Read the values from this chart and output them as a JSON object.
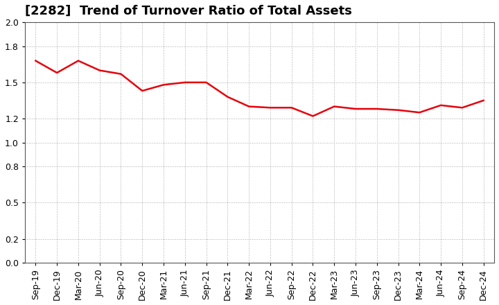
{
  "title": "[2282]  Trend of Turnover Ratio of Total Assets",
  "x_labels": [
    "Sep-19",
    "Dec-19",
    "Mar-20",
    "Jun-20",
    "Sep-20",
    "Dec-20",
    "Mar-21",
    "Jun-21",
    "Sep-21",
    "Dec-21",
    "Mar-22",
    "Jun-22",
    "Sep-22",
    "Dec-22",
    "Mar-23",
    "Jun-23",
    "Sep-23",
    "Dec-23",
    "Mar-24",
    "Jun-24",
    "Sep-24",
    "Dec-24"
  ],
  "y_values": [
    1.68,
    1.58,
    1.68,
    1.6,
    1.57,
    1.43,
    1.48,
    1.5,
    1.5,
    1.38,
    1.3,
    1.29,
    1.29,
    1.22,
    1.3,
    1.28,
    1.28,
    1.27,
    1.25,
    1.31,
    1.29,
    1.35
  ],
  "line_color": "#e8000a",
  "line_width": 1.8,
  "ylim": [
    0.0,
    2.0
  ],
  "yticks": [
    0.0,
    0.2,
    0.5,
    0.8,
    1.0,
    1.2,
    1.5,
    1.8,
    2.0
  ],
  "background_color": "#ffffff",
  "grid_color": "#aaaaaa",
  "title_fontsize": 13,
  "tick_fontsize": 9
}
